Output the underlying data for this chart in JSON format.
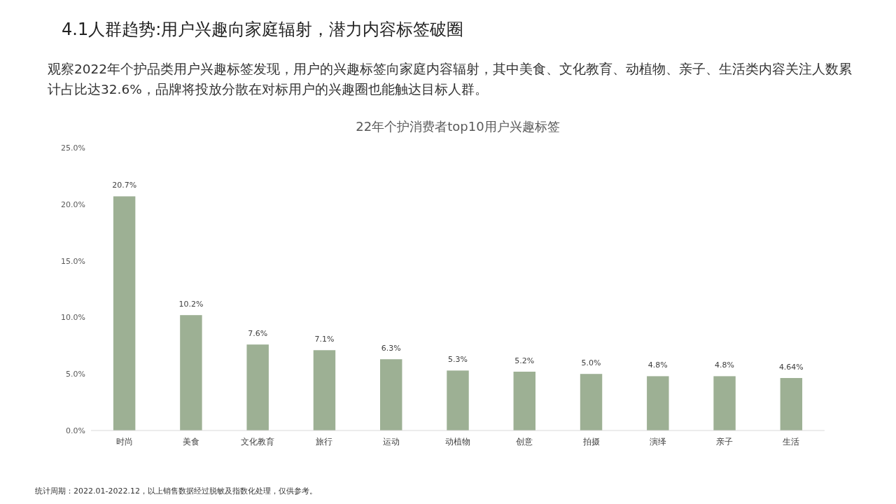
{
  "chart_data": {
    "type": "bar",
    "title": "4.1人群趋势:用户兴趣向家庭辐射，潜力内容标签破圈",
    "subtitle": "观察2022年个护品类用户兴趣标签发现，用户的兴趣标签向家庭内容辐射，其中美食、文化教育、动植物、亲子、生活类内容关注人数累计占比达32.6%，品牌将投放分散在对标用户的兴趣圈也能触达目标人群。",
    "annotations": [
      "22年个护消费者top10用户兴趣标签",
      "统计周期：2022.01-2022.12，以上销售数据经过脱敏及指数化处理，仅供参考。"
    ],
    "categories": [
      "时尚",
      "美食",
      "文化教育",
      "旅行",
      "运动",
      "动植物",
      "创意",
      "拍摄",
      "演绎",
      "亲子",
      "生活"
    ],
    "values": [
      20.7,
      10.2,
      7.6,
      7.1,
      6.3,
      5.3,
      5.2,
      5.0,
      4.8,
      4.8,
      4.64
    ],
    "value_labels": [
      "20.7%",
      "10.2%",
      "7.6%",
      "7.1%",
      "6.3%",
      "5.3%",
      "5.2%",
      "5.0%",
      "4.8%",
      "4.8%",
      "4.64%"
    ],
    "color": "#9db094",
    "ylim": [
      0,
      25
    ],
    "yticks": [
      {
        "value": 0,
        "label": "0.0%"
      },
      {
        "value": 5,
        "label": "5.0%"
      },
      {
        "value": 10,
        "label": "10.0%"
      },
      {
        "value": 15,
        "label": "15.0%"
      },
      {
        "value": 20,
        "label": "20.0%"
      },
      {
        "value": 25,
        "label": "25.0%"
      }
    ],
    "grid": false
  }
}
